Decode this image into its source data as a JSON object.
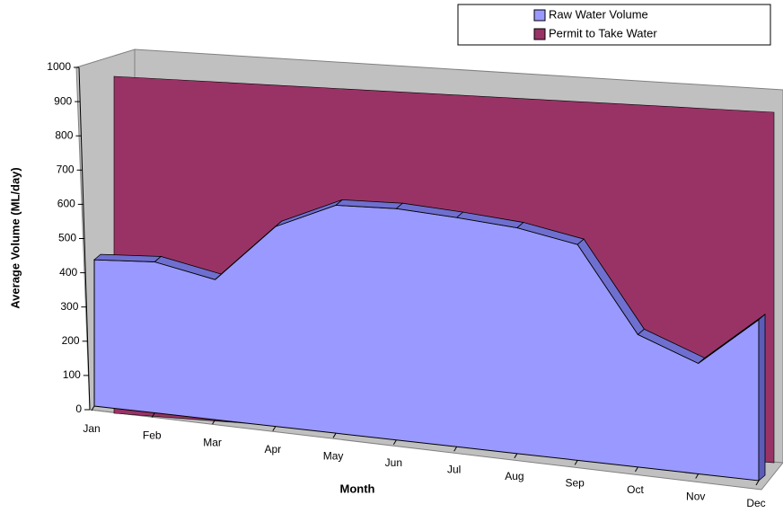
{
  "chart_data": {
    "type": "area3d",
    "x_label": "Month",
    "y_label": "Average Volume (ML/day)",
    "categories": [
      "Jan",
      "Feb",
      "Mar",
      "Apr",
      "May",
      "Jun",
      "Jul",
      "Aug",
      "Sep",
      "Oct",
      "Nov",
      "Dec"
    ],
    "series": [
      {
        "name": "Raw Water Volume",
        "color": "#9999ff",
        "values": [
          445,
          430,
          375,
          505,
          545,
          525,
          495,
          465,
          425,
          250,
          200,
          280
        ]
      },
      {
        "name": "Permit to Take Water",
        "color": "#993366",
        "values": [
          1000,
          1000,
          1000,
          1000,
          1000,
          1000,
          1000,
          1000,
          1000,
          1000,
          1000,
          1000
        ]
      }
    ],
    "ylim": [
      0,
      1000
    ],
    "yticks": [
      0,
      100,
      200,
      300,
      400,
      500,
      600,
      700,
      800,
      900,
      1000
    ],
    "legend": "top-right"
  }
}
